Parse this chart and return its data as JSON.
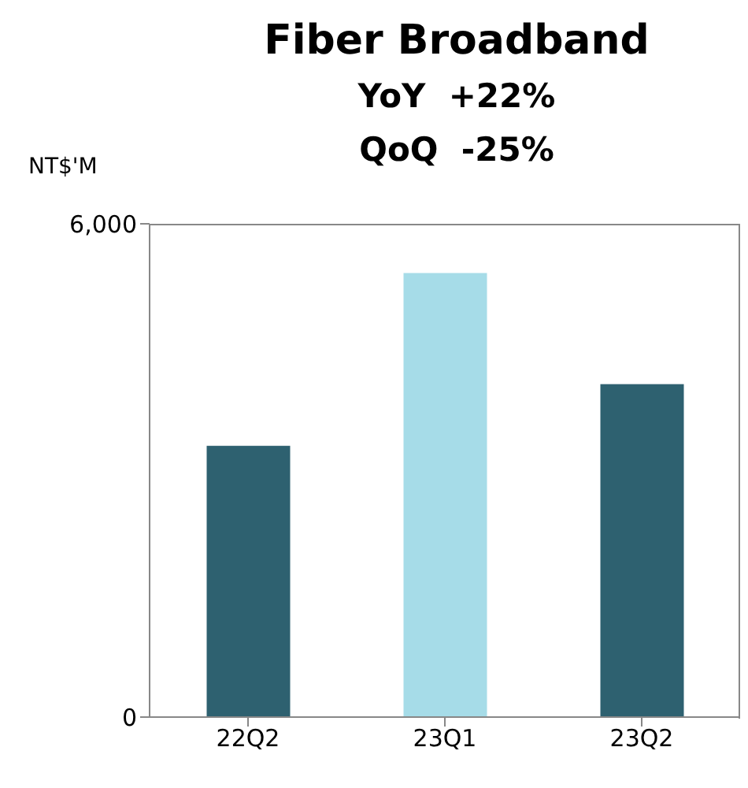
{
  "chart_data": {
    "type": "bar",
    "title": "Fiber Broadband",
    "subtitle": "YoY  +22%",
    "annotations": [
      "QoQ  -25%"
    ],
    "ylabel": "NT$'M",
    "categories": [
      "22Q2",
      "23Q1",
      "23Q2"
    ],
    "values": [
      3300,
      5400,
      4050
    ],
    "colors": [
      "#2e6170",
      "#a6dce8",
      "#2e6170"
    ],
    "ylim": [
      0,
      6000
    ],
    "yticks": [
      0,
      {
        "value": 6000,
        "label": "6,000"
      }
    ],
    "grid": false
  }
}
